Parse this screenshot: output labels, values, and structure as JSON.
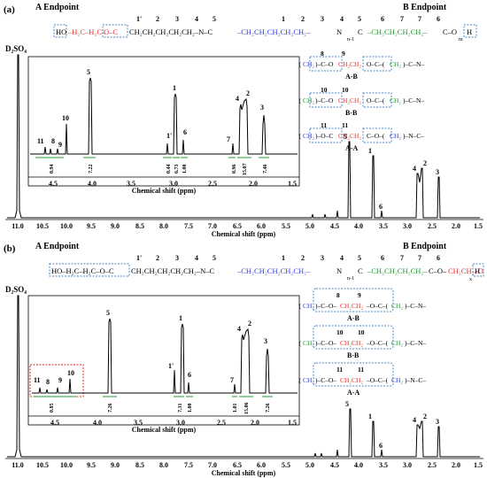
{
  "panels": [
    {
      "label": "(a)",
      "endpoint_a": "A Endpoint",
      "endpoint_b": "B Endpoint",
      "solvent": "D₂SO₄",
      "backbone_numbers": [
        "1'",
        "2",
        "3",
        "4",
        "5",
        "1",
        "2",
        "3",
        "4",
        "5",
        "6",
        "7",
        "7",
        "6"
      ],
      "subscripts": [
        "n-1",
        "m"
      ],
      "motifs": [
        {
          "label": "A-B",
          "numbers": [
            "8",
            "9"
          ],
          "subs": [
            "n",
            "4"
          ]
        },
        {
          "label": "B-B",
          "numbers": [
            "10",
            "10"
          ],
          "subs": [
            "4",
            "4"
          ]
        },
        {
          "label": "A-A",
          "numbers": [
            "11",
            "11"
          ],
          "subs": [
            "n",
            "n"
          ]
        }
      ],
      "main_peaks": [
        "5",
        "1",
        "6",
        "4",
        "2",
        "3"
      ],
      "inset_peaks": [
        "11",
        "8",
        "9",
        "10",
        "5",
        "1'",
        "1",
        "6",
        "7",
        "4",
        "2",
        "3"
      ],
      "integrals": [
        "0.94",
        "7.22",
        "0.44",
        "6.73",
        "1.00",
        "0.96",
        "15.07",
        "7.46"
      ],
      "inset_ticks": [
        "4.5",
        "4.0",
        "3.5",
        "3.0",
        "2.5",
        "2.0",
        "1.5"
      ],
      "main_ticks": [
        "11.0",
        "10.5",
        "10.0",
        "9.5",
        "9.0",
        "8.5",
        "8.0",
        "7.5",
        "7.0",
        "6.5",
        "6.0",
        "5.5",
        "5.0",
        "4.5",
        "4.0",
        "3.5",
        "3.0",
        "2.5",
        "2.0",
        "1.5"
      ],
      "xlabel": "Chemical shift (ppm)",
      "inset_xlabel": "Chemical shift (ppm)"
    },
    {
      "label": "(b)",
      "endpoint_a": "A Endpoint",
      "endpoint_b": "B Endpoint",
      "solvent": "D₂SO₄",
      "backbone_numbers": [
        "1'",
        "2",
        "3",
        "4",
        "5",
        "1",
        "2",
        "3",
        "4",
        "5",
        "6",
        "7",
        "7",
        "6"
      ],
      "subscripts": [
        "n-1",
        "x"
      ],
      "motifs": [
        {
          "label": "A-B",
          "numbers": [
            "8",
            "9"
          ],
          "subs": [
            "n",
            "4"
          ]
        },
        {
          "label": "B-B",
          "numbers": [
            "10",
            "10"
          ],
          "subs": [
            "4",
            "4"
          ]
        },
        {
          "label": "A-A",
          "numbers": [
            "11",
            "11"
          ],
          "subs": [
            "n",
            "n"
          ]
        }
      ],
      "main_peaks": [
        "5",
        "1",
        "6",
        "4",
        "2",
        "3"
      ],
      "inset_peaks": [
        "11",
        "8",
        "9",
        "10",
        "5",
        "1'",
        "1",
        "6",
        "7",
        "4",
        "2",
        "3"
      ],
      "integrals": [
        "0.85",
        "7.26",
        "7.31",
        "1.00",
        "1.01",
        "15.06",
        "7.26"
      ],
      "inset_ticks": [
        "4.5",
        "4.0",
        "3.5",
        "3.0",
        "2.5",
        "2.0",
        "1.5"
      ],
      "main_ticks": [
        "11.0",
        "10.5",
        "10.0",
        "9.5",
        "9.0",
        "8.5",
        "8.0",
        "7.5",
        "7.0",
        "6.5",
        "6.0",
        "5.5",
        "5.0",
        "4.5",
        "4.0",
        "3.5",
        "3.0",
        "2.5",
        "2.0",
        "1.5"
      ],
      "xlabel": "Chemical shift (ppm)",
      "inset_xlabel": "Chemical shift (ppm)"
    }
  ],
  "colors": {
    "red": "#e8302a",
    "blue": "#2f3fd8",
    "green": "#1f9a2e",
    "box": "#4b88c8",
    "dotted_red": "#d62020"
  }
}
